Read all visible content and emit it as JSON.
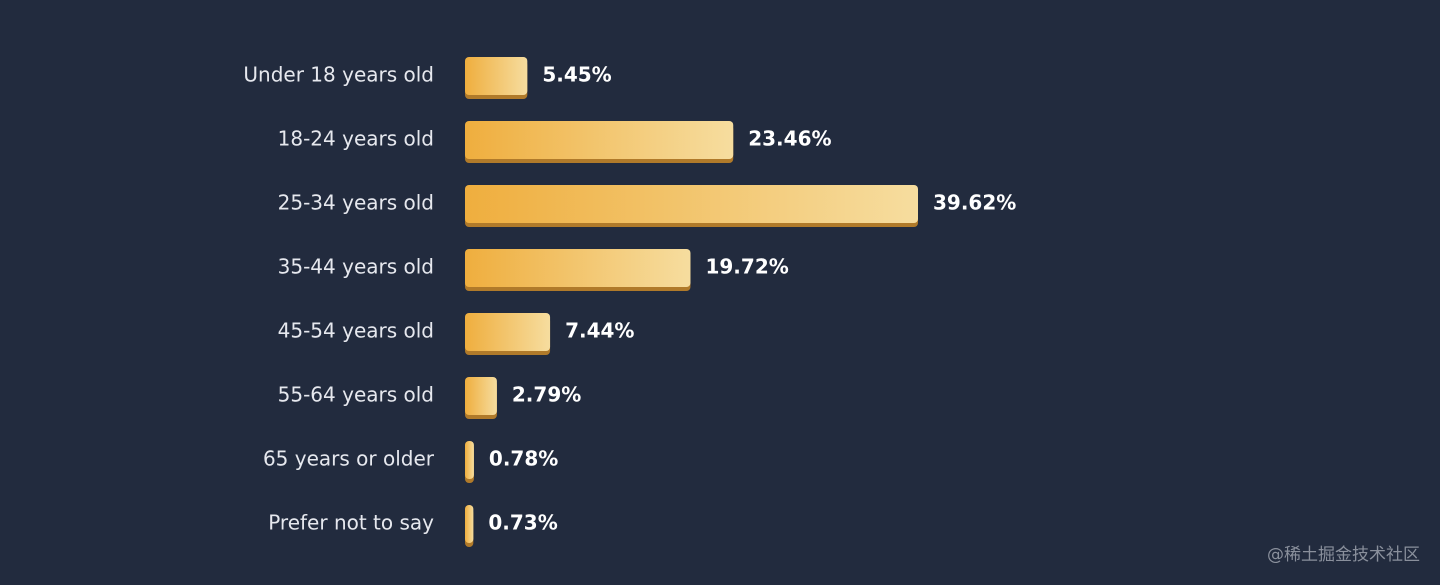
{
  "chart_data": {
    "type": "bar",
    "orientation": "horizontal",
    "categories": [
      "Under 18 years old",
      "18-24 years old",
      "25-34 years old",
      "35-44 years old",
      "45-54 years old",
      "55-64 years old",
      "65 years or older",
      "Prefer not to say"
    ],
    "values": [
      5.45,
      23.46,
      39.62,
      19.72,
      7.44,
      2.79,
      0.78,
      0.73
    ],
    "value_labels": [
      "5.45%",
      "23.46%",
      "39.62%",
      "19.72%",
      "7.44%",
      "2.79%",
      "0.78%",
      "0.73%"
    ],
    "color": "#f0b445"
  },
  "watermark": "@稀土掘金技术社区"
}
